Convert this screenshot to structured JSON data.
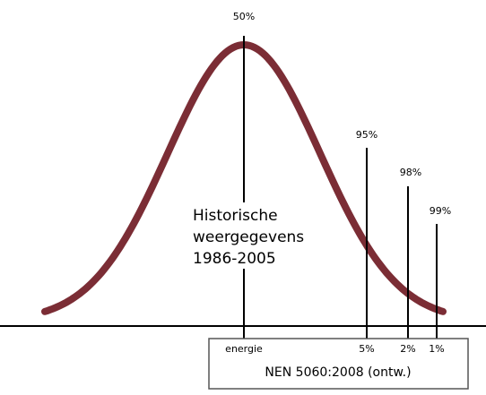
{
  "markers": [
    {
      "top_label": "50%",
      "bottom_label": "energie"
    },
    {
      "top_label": "95%",
      "bottom_label": "5%"
    },
    {
      "top_label": "98%",
      "bottom_label": "2%"
    },
    {
      "top_label": "99%",
      "bottom_label": "1%"
    }
  ],
  "center_text": [
    "Historische",
    "weergegevens",
    "1986-2005"
  ],
  "box_label": "NEN 5060:2008 (ontw.)"
}
